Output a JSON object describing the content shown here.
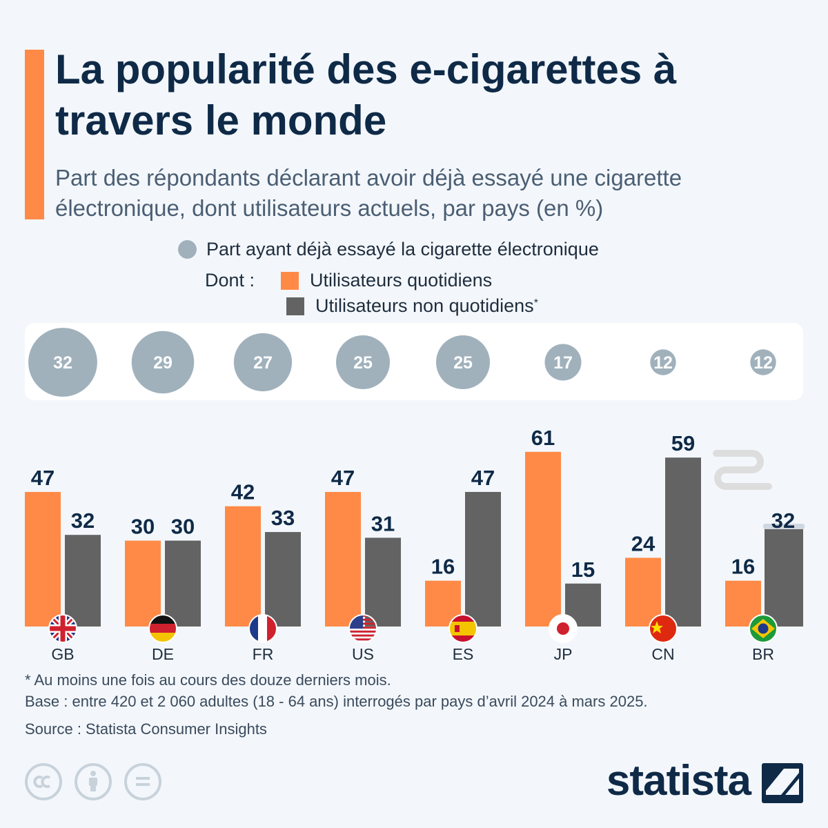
{
  "header": {
    "title": "La popularité des e-cigarettes à travers le monde",
    "subtitle": "Part des répondants déclarant avoir déjà essayé une cigarette électronique, dont utilisateurs actuels, par pays (en %)"
  },
  "legend": {
    "tried_label": "Part ayant déjà essayé la cigarette électronique",
    "dont_label": "Dont :",
    "daily_label": "Utilisateurs quotidiens",
    "non_daily_label": "Utilisateurs non quotidiens",
    "non_daily_marker": "*"
  },
  "colors": {
    "daily": "#ff8a47",
    "non_daily": "#636363",
    "tried_circle": "#a0b1bc",
    "title": "#0f2a47"
  },
  "chart_data": {
    "type": "bar",
    "categories": [
      "GB",
      "DE",
      "FR",
      "US",
      "ES",
      "JP",
      "CN",
      "BR"
    ],
    "tried": [
      32,
      29,
      27,
      25,
      25,
      17,
      12,
      12
    ],
    "series": [
      {
        "name": "Utilisateurs quotidiens",
        "values": [
          47,
          30,
          42,
          47,
          16,
          61,
          24,
          16
        ]
      },
      {
        "name": "Utilisateurs non quotidiens",
        "values": [
          32,
          30,
          33,
          31,
          47,
          15,
          59,
          32
        ]
      }
    ],
    "flags": [
      "flag-gb",
      "flag-de",
      "flag-fr",
      "flag-us",
      "flag-es",
      "flag-jp",
      "flag-cn",
      "flag-br"
    ],
    "ylim": [
      0,
      70
    ]
  },
  "footer": {
    "note": "* Au moins une fois au cours des douze derniers mois.",
    "base": "Base : entre 420 et 2 060 adultes (18 - 64 ans) interrogés par pays d’avril 2024 à mars 2025.",
    "source": "Source : Statista Consumer Insights",
    "brand": "statista",
    "license_icons": [
      "cc-icon",
      "attribution-icon",
      "no-derivatives-icon"
    ]
  }
}
